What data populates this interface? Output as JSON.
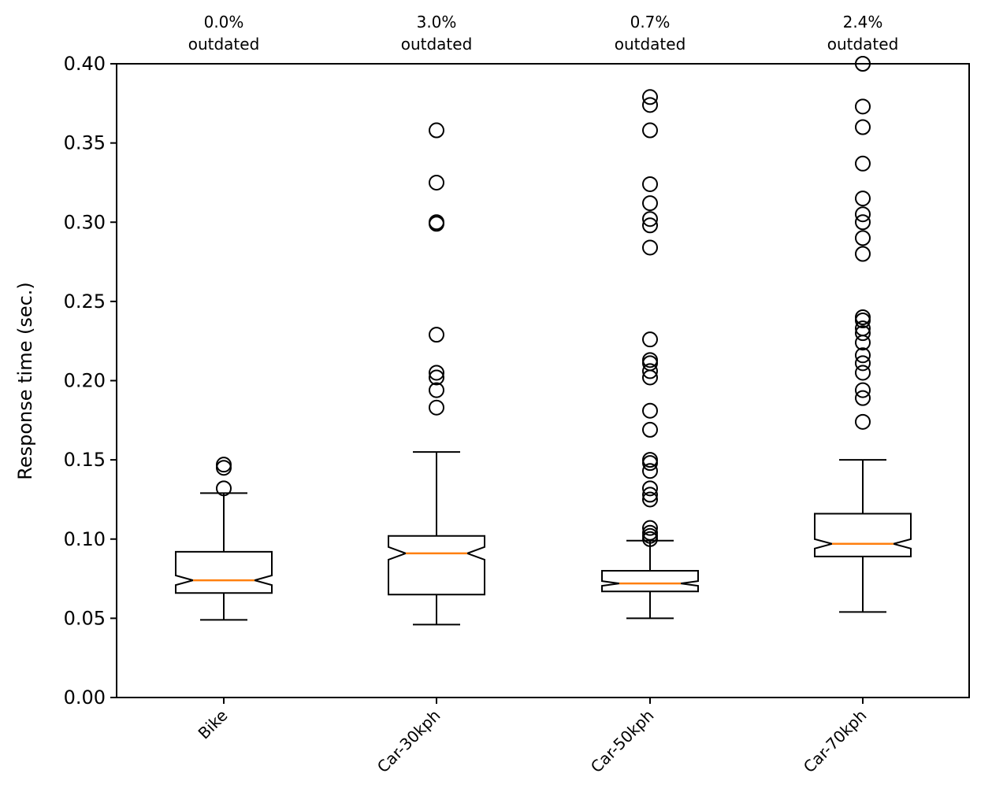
{
  "chart_data": {
    "type": "boxplot",
    "notched": true,
    "title": "",
    "xlabel": "",
    "ylabel": "Response time (sec.)",
    "ylim": [
      0.0,
      0.4
    ],
    "yticks": [
      "0.00",
      "0.05",
      "0.10",
      "0.15",
      "0.20",
      "0.25",
      "0.30",
      "0.35",
      "0.40"
    ],
    "yticks_values": [
      0.0,
      0.05,
      0.1,
      0.15,
      0.2,
      0.25,
      0.3,
      0.35,
      0.4
    ],
    "categories": [
      "Bike",
      "Car-30kph",
      "Car-50kph",
      "Car-70kph"
    ],
    "annotations": [
      {
        "percent": "0.0%",
        "label": "outdated"
      },
      {
        "percent": "3.0%",
        "label": "outdated"
      },
      {
        "percent": "0.7%",
        "label": "outdated"
      },
      {
        "percent": "2.4%",
        "label": "outdated"
      }
    ],
    "boxes": [
      {
        "category": "Bike",
        "whisker_low": 0.049,
        "q1": 0.066,
        "median": 0.074,
        "q3": 0.092,
        "whisker_high": 0.129,
        "notch_low": 0.071,
        "notch_high": 0.077,
        "outliers": [
          0.132,
          0.145,
          0.147
        ]
      },
      {
        "category": "Car-30kph",
        "whisker_low": 0.046,
        "q1": 0.065,
        "median": 0.091,
        "q3": 0.102,
        "whisker_high": 0.155,
        "notch_low": 0.087,
        "notch_high": 0.095,
        "outliers": [
          0.183,
          0.194,
          0.202,
          0.205,
          0.229,
          0.299,
          0.3,
          0.325,
          0.358
        ]
      },
      {
        "category": "Car-50kph",
        "whisker_low": 0.05,
        "q1": 0.067,
        "median": 0.072,
        "q3": 0.08,
        "whisker_high": 0.099,
        "notch_low": 0.0705,
        "notch_high": 0.0735,
        "outliers": [
          0.1,
          0.102,
          0.104,
          0.107,
          0.125,
          0.128,
          0.132,
          0.143,
          0.148,
          0.15,
          0.169,
          0.181,
          0.202,
          0.206,
          0.211,
          0.213,
          0.226,
          0.284,
          0.298,
          0.302,
          0.312,
          0.324,
          0.358,
          0.374,
          0.379
        ]
      },
      {
        "category": "Car-70kph",
        "whisker_low": 0.054,
        "q1": 0.089,
        "median": 0.097,
        "q3": 0.116,
        "whisker_high": 0.15,
        "notch_low": 0.094,
        "notch_high": 0.1,
        "outliers": [
          0.174,
          0.189,
          0.194,
          0.205,
          0.211,
          0.216,
          0.224,
          0.23,
          0.233,
          0.238,
          0.24,
          0.28,
          0.29,
          0.3,
          0.305,
          0.315,
          0.337,
          0.36,
          0.373,
          0.4
        ]
      }
    ],
    "colors": {
      "median": "#ff7f0e",
      "box": "#000000",
      "background": "#ffffff"
    }
  }
}
